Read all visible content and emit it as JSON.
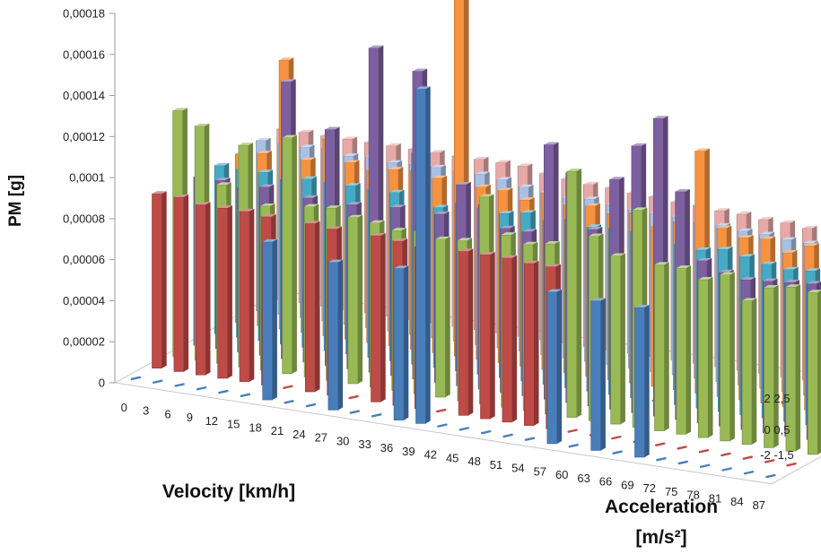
{
  "chart_data": {
    "type": "bar",
    "subtype": "3d-column",
    "title": "",
    "ylabel": "PM [g]",
    "xlabel": "Velocity [km/h]",
    "zlabel_line1": "Acceleration",
    "zlabel_line2": "[m/s²]",
    "ylim": [
      0,
      0.00018
    ],
    "yticks": [
      "0",
      "0,00002",
      "0,00004",
      "0,00006",
      "0,00008",
      "0,0001",
      "0,00012",
      "0,00014",
      "0,00016",
      "0,00018"
    ],
    "yticks_numeric": [
      0,
      2e-05,
      4e-05,
      6e-05,
      8e-05,
      0.0001,
      0.00012,
      0.00014,
      0.00016,
      0.00018
    ],
    "x": [
      0,
      3,
      6,
      9,
      12,
      15,
      18,
      21,
      24,
      27,
      30,
      33,
      36,
      39,
      42,
      45,
      48,
      51,
      54,
      57,
      60,
      63,
      66,
      69,
      72,
      75,
      78,
      81,
      84,
      87
    ],
    "z_tick_labels": [
      [
        "2",
        "2,5"
      ],
      [
        "0",
        "0,5"
      ],
      [
        "-2",
        "-1,5"
      ]
    ],
    "grid": false,
    "legend": "none",
    "series": [
      {
        "color": "#4a7ebb",
        "values": [
          0,
          0,
          0,
          0,
          0,
          0,
          7.7e-05,
          0,
          0,
          7.2e-05,
          0,
          0,
          7.4e-05,
          0.000163,
          0,
          0,
          0,
          0,
          0,
          7.4e-05,
          0,
          7.3e-05,
          0,
          7.3e-05,
          0,
          0,
          0,
          0,
          0,
          0
        ]
      },
      {
        "color": "#be4b48",
        "values": [
          8.5e-05,
          8.5e-05,
          8.3e-05,
          8.3e-05,
          8.3e-05,
          8.2e-05,
          0,
          8.2e-05,
          8.1e-05,
          0,
          8.1e-05,
          8e-05,
          7.9e-05,
          0,
          8e-05,
          8e-05,
          8e-05,
          7.9e-05,
          7.9e-05,
          0,
          0,
          0,
          0,
          0,
          0,
          0,
          0,
          0,
          0,
          0
        ]
      },
      {
        "color": "#98b954",
        "values": [
          0.00012,
          0.000114,
          8.7e-05,
          0.000108,
          8e-05,
          0.000115,
          8.3e-05,
          8.4e-05,
          8.1e-05,
          8e-05,
          7.8e-05,
          7.9e-05,
          7.7e-05,
          7.8e-05,
          0.000101,
          8.4e-05,
          8.1e-05,
          8.3e-05,
          0.00012,
          9e-05,
          8.2e-05,
          0.000106,
          8.1e-05,
          8.1e-05,
          7.7e-05,
          8.1e-05,
          7e-05,
          7.8e-05,
          8e-05,
          7.9e-05
        ]
      },
      {
        "color": "#7d60a0",
        "values": [
          8.2e-05,
          8.2e-05,
          8e-05,
          8.2e-05,
          0.000135,
          8e-05,
          0.000115,
          8e-05,
          0.000158,
          8.2e-05,
          0.00015,
          8.2e-05,
          9.8e-05,
          9e-05,
          8e-05,
          8e-05,
          0.000124,
          0.000112,
          8.6e-05,
          0.000112,
          0.00013,
          0.000145,
          0.000111,
          7.9e-05,
          7.5e-05,
          7.3e-05,
          7.4e-05,
          7.5e-05,
          7.6e-05,
          0.000151
        ]
      },
      {
        "color": "#46aac5",
        "values": [
          8.2e-05,
          8.2e-05,
          8.2e-05,
          8e-05,
          8.2e-05,
          8.2e-05,
          8.2e-05,
          8.2e-05,
          8.2e-05,
          0.000103,
          7.8e-05,
          8.2e-05,
          8.1e-05,
          8e-05,
          8.2e-05,
          8e-05,
          8.2e-05,
          8e-05,
          8.1e-05,
          8.1e-05,
          0,
          7.8e-05,
          7.7e-05,
          7.9e-05,
          7.7e-05,
          7.5e-05,
          7.4e-05,
          7.5e-05,
          7.4e-05,
          7.3e-05
        ]
      },
      {
        "color": "#f69240",
        "values": [
          8.2e-05,
          8.4e-05,
          0.000131,
          8.4e-05,
          9.6e-05,
          8.6e-05,
          8.4e-05,
          8.6e-05,
          8.7e-05,
          8.5e-05,
          0.000175,
          8.4e-05,
          8.4e-05,
          8.1e-05,
          8.6e-05,
          8.2e-05,
          8.3e-05,
          8.1e-05,
          8.3e-05,
          7.8e-05,
          8.2e-05,
          0.000118,
          8.2e-05,
          7.9e-05,
          8e-05,
          7.5e-05,
          8e-05,
          7.1e-05,
          7.8e-05,
          7.6e-05
        ]
      },
      {
        "color": "#a7c0e4",
        "values": [
          8.3e-05,
          8.3e-05,
          8.3e-05,
          8.4e-05,
          8.2e-05,
          8.3e-05,
          8.2e-05,
          8.3e-05,
          8.3e-05,
          8.3e-05,
          8.3e-05,
          8.2e-05,
          8e-05,
          7.9e-05,
          7.8e-05,
          7.9e-05,
          7.8e-05,
          7.7e-05,
          7.7e-05,
          7.7e-05,
          7.6e-05,
          7.6e-05,
          7.5e-05,
          7.5e-05,
          7.4e-05,
          7.4e-05,
          7.4e-05,
          7.3e-05,
          7.2e-05,
          7e-05
        ]
      },
      {
        "color": "#e6a9a8",
        "values": [
          8.3e-05,
          8.3e-05,
          8.3e-05,
          8.3e-05,
          8.3e-05,
          8.3e-05,
          8.3e-05,
          8.3e-05,
          8.3e-05,
          8.3e-05,
          8.3e-05,
          8.3e-05,
          8.1e-05,
          8e-05,
          7.9e-05,
          7.9e-05,
          7.8e-05,
          7.8e-05,
          7.7e-05,
          7.7e-05,
          7.6e-05,
          7.6e-05,
          7.5e-05,
          7.5e-05,
          7.4e-05,
          7.4e-05,
          7.4e-05,
          8.1e-05,
          7.3e-05,
          7.2e-05
        ]
      }
    ]
  }
}
